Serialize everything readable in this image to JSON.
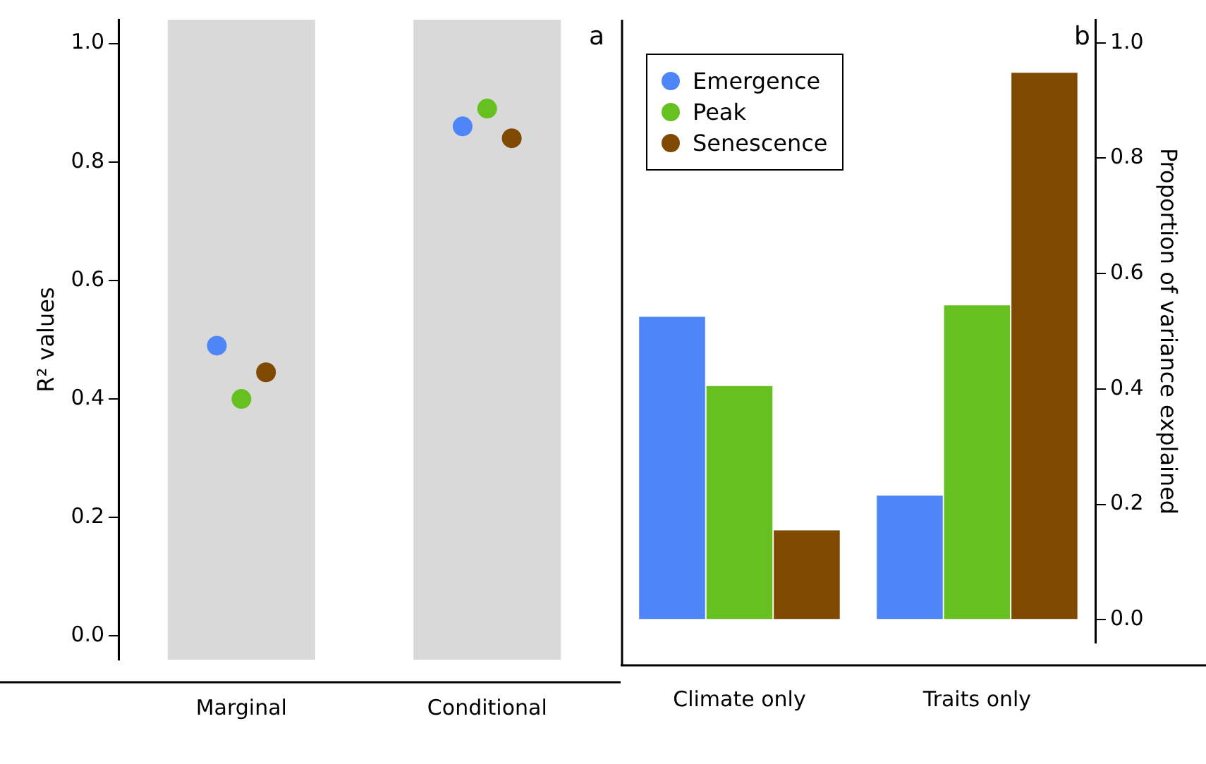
{
  "chart_data": [
    {
      "type": "scatter",
      "categories": [
        "Marginal",
        "Conditional"
      ],
      "ylabel": "R² values",
      "ylim": [
        -0.04,
        1.04
      ],
      "yticks": [
        {
          "value": 0,
          "label": "0.0"
        },
        0.2,
        0.4,
        0.6,
        0.8,
        {
          "value": 1,
          "label": "1.0"
        }
      ],
      "grid": false,
      "legend": false,
      "marker": "circle",
      "annotations": [
        "a"
      ],
      "bands": [
        {
          "axis": "x",
          "from": "Marginal",
          "to": "Marginal",
          "color": "#d9d9d9"
        },
        {
          "axis": "x",
          "from": "Conditional",
          "to": "Conditional",
          "color": "#d9d9d9"
        }
      ],
      "series": [
        {
          "color": "#4f86f7",
          "values": [
            0.49,
            0.86
          ]
        },
        {
          "color": "#66c01f",
          "values": [
            0.4,
            0.89
          ]
        },
        {
          "color": "#7f4a00",
          "values": [
            0.445,
            0.84
          ]
        }
      ]
    },
    {
      "type": "bar",
      "categories": [
        "Climate only",
        "Traits only"
      ],
      "y2label": "Proportion of variance explained",
      "y2lim": [
        -0.04,
        1.04
      ],
      "y2ticks": [
        {
          "value": 0,
          "label": "0.0"
        },
        0.2,
        0.4,
        0.6,
        0.8,
        {
          "value": 1,
          "label": "1.0"
        }
      ],
      "grid": false,
      "legend": "top left",
      "annotations": [
        "b"
      ],
      "series": [
        {
          "name": "Emergence",
          "color": "#4f86f7",
          "axis": "y2",
          "values": [
            0.525,
            0.215
          ]
        },
        {
          "name": "Peak",
          "color": "#66c01f",
          "axis": "y2",
          "values": [
            0.405,
            0.545
          ]
        },
        {
          "name": "Senescence",
          "color": "#7f4a00",
          "axis": "y2",
          "values": [
            0.155,
            0.948
          ]
        }
      ]
    }
  ]
}
